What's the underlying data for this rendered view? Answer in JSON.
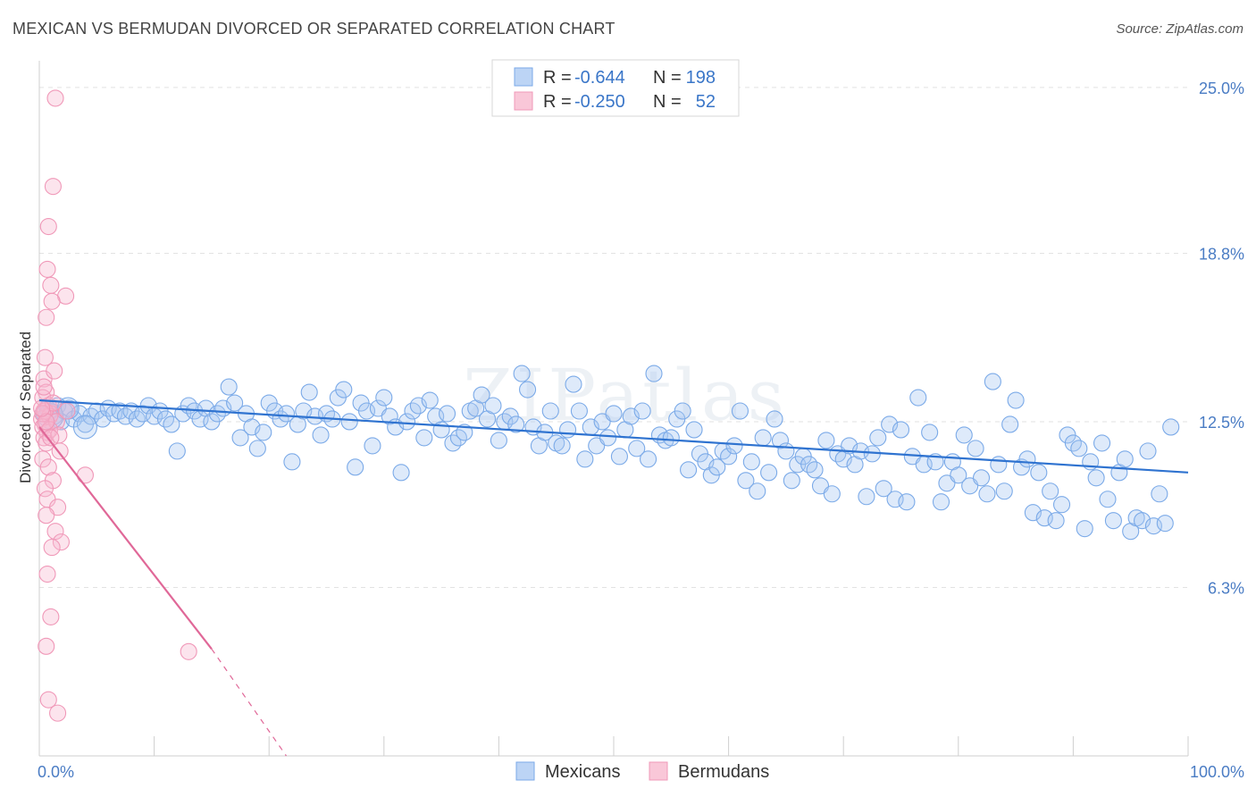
{
  "title": "MEXICAN VS BERMUDAN DIVORCED OR SEPARATED CORRELATION CHART",
  "source": "Source: ZipAtlas.com",
  "watermark": "ZIPatlas",
  "chart_data": {
    "type": "scatter",
    "title": "MEXICAN VS BERMUDAN DIVORCED OR SEPARATED CORRELATION CHART",
    "ylabel": "Divorced or Separated",
    "xlabel": "",
    "xlim": [
      0,
      100
    ],
    "ylim": [
      0,
      26.0
    ],
    "x_tick_labels": [
      {
        "value": 0,
        "label": "0.0%"
      },
      {
        "value": 100,
        "label": "100.0%"
      }
    ],
    "x_minor_ticks": [
      10,
      20,
      30,
      40,
      50,
      60,
      70,
      80,
      90,
      100
    ],
    "y_ticks": [
      {
        "value": 6.3,
        "label": "6.3%"
      },
      {
        "value": 12.5,
        "label": "12.5%"
      },
      {
        "value": 18.8,
        "label": "18.8%"
      },
      {
        "value": 25.0,
        "label": "25.0%"
      }
    ],
    "legend_stats": [
      {
        "r_label": "R =",
        "r_value": "-0.644",
        "n_label": "N =",
        "n_value": "198",
        "color": "#7baae8"
      },
      {
        "r_label": "R =",
        "r_value": "-0.250",
        "n_label": "N =",
        "n_value": "52",
        "color": "#f098b8"
      }
    ],
    "series": [
      {
        "name": "Mexicans",
        "color": "#7baae8",
        "line_color": "#2f73d0",
        "trend": {
          "x0": 0,
          "y0": 13.3,
          "x1": 100,
          "y1": 10.6,
          "dashed_to": null
        },
        "points": [
          [
            0.4,
            12.8
          ],
          [
            0.7,
            13.0
          ],
          [
            1.0,
            12.9
          ],
          [
            1.3,
            12.7
          ],
          [
            1.6,
            13.1
          ],
          [
            1.9,
            12.5
          ],
          [
            2.2,
            12.9
          ],
          [
            2.6,
            13.0
          ],
          [
            3.0,
            12.6
          ],
          [
            3.5,
            12.8
          ],
          [
            4.0,
            12.4
          ],
          [
            4.5,
            12.7
          ],
          [
            5.0,
            12.9
          ],
          [
            5.5,
            12.6
          ],
          [
            6.0,
            13.0
          ],
          [
            6.5,
            12.8
          ],
          [
            7.0,
            12.9
          ],
          [
            7.5,
            12.7
          ],
          [
            8.0,
            12.9
          ],
          [
            8.5,
            12.6
          ],
          [
            9.0,
            12.8
          ],
          [
            9.5,
            13.1
          ],
          [
            10.0,
            12.7
          ],
          [
            10.5,
            12.9
          ],
          [
            11.0,
            12.6
          ],
          [
            11.5,
            12.4
          ],
          [
            12.0,
            11.4
          ],
          [
            12.5,
            12.8
          ],
          [
            13.0,
            13.1
          ],
          [
            13.5,
            12.9
          ],
          [
            14.0,
            12.6
          ],
          [
            14.5,
            13.0
          ],
          [
            15.0,
            12.5
          ],
          [
            15.5,
            12.8
          ],
          [
            16.0,
            13.0
          ],
          [
            16.5,
            13.8
          ],
          [
            17.0,
            13.2
          ],
          [
            17.5,
            11.9
          ],
          [
            18.0,
            12.8
          ],
          [
            18.5,
            12.3
          ],
          [
            19.0,
            11.5
          ],
          [
            19.5,
            12.1
          ],
          [
            20.0,
            13.2
          ],
          [
            20.5,
            12.9
          ],
          [
            21.0,
            12.6
          ],
          [
            21.5,
            12.8
          ],
          [
            22.0,
            11.0
          ],
          [
            22.5,
            12.4
          ],
          [
            23.0,
            12.9
          ],
          [
            23.5,
            13.6
          ],
          [
            24.0,
            12.7
          ],
          [
            24.5,
            12.0
          ],
          [
            25.0,
            12.8
          ],
          [
            25.5,
            12.6
          ],
          [
            26.0,
            13.4
          ],
          [
            26.5,
            13.7
          ],
          [
            27.0,
            12.5
          ],
          [
            27.5,
            10.8
          ],
          [
            28.0,
            13.2
          ],
          [
            28.5,
            12.9
          ],
          [
            29.0,
            11.6
          ],
          [
            29.5,
            13.0
          ],
          [
            30.0,
            13.4
          ],
          [
            30.5,
            12.7
          ],
          [
            31.0,
            12.3
          ],
          [
            31.5,
            10.6
          ],
          [
            32.0,
            12.5
          ],
          [
            32.5,
            12.9
          ],
          [
            33.0,
            13.1
          ],
          [
            33.5,
            11.9
          ],
          [
            34.0,
            13.3
          ],
          [
            34.5,
            12.7
          ],
          [
            35.0,
            12.2
          ],
          [
            35.5,
            12.8
          ],
          [
            36.0,
            11.7
          ],
          [
            36.5,
            11.9
          ],
          [
            37.0,
            12.1
          ],
          [
            37.5,
            12.9
          ],
          [
            38.0,
            13.0
          ],
          [
            38.5,
            13.5
          ],
          [
            39.0,
            12.6
          ],
          [
            39.5,
            13.1
          ],
          [
            40.0,
            11.8
          ],
          [
            40.5,
            12.5
          ],
          [
            41.0,
            12.7
          ],
          [
            41.5,
            12.4
          ],
          [
            42.0,
            14.3
          ],
          [
            42.5,
            13.7
          ],
          [
            43.0,
            12.3
          ],
          [
            43.5,
            11.6
          ],
          [
            44.0,
            12.1
          ],
          [
            44.5,
            12.9
          ],
          [
            45.0,
            11.7
          ],
          [
            45.5,
            11.6
          ],
          [
            46.0,
            12.2
          ],
          [
            46.5,
            13.9
          ],
          [
            47.0,
            12.9
          ],
          [
            47.5,
            11.1
          ],
          [
            48.0,
            12.3
          ],
          [
            48.5,
            11.6
          ],
          [
            49.0,
            12.5
          ],
          [
            49.5,
            11.9
          ],
          [
            50.0,
            12.8
          ],
          [
            50.5,
            11.2
          ],
          [
            51.0,
            12.2
          ],
          [
            51.5,
            12.7
          ],
          [
            52.0,
            11.5
          ],
          [
            52.5,
            12.9
          ],
          [
            53.0,
            11.1
          ],
          [
            53.5,
            14.3
          ],
          [
            54.0,
            12.0
          ],
          [
            54.5,
            11.8
          ],
          [
            55.0,
            11.9
          ],
          [
            55.5,
            12.6
          ],
          [
            56.0,
            12.9
          ],
          [
            56.5,
            10.7
          ],
          [
            57.0,
            12.2
          ],
          [
            57.5,
            11.3
          ],
          [
            58.0,
            11.0
          ],
          [
            58.5,
            10.5
          ],
          [
            59.0,
            10.8
          ],
          [
            59.5,
            11.4
          ],
          [
            60.0,
            11.2
          ],
          [
            60.5,
            11.6
          ],
          [
            61.0,
            12.9
          ],
          [
            61.5,
            10.3
          ],
          [
            62.0,
            11.0
          ],
          [
            62.5,
            9.9
          ],
          [
            63.0,
            11.9
          ],
          [
            63.5,
            10.6
          ],
          [
            64.0,
            12.6
          ],
          [
            64.5,
            11.8
          ],
          [
            65.0,
            11.4
          ],
          [
            65.5,
            10.3
          ],
          [
            66.0,
            10.9
          ],
          [
            66.5,
            11.2
          ],
          [
            67.0,
            10.9
          ],
          [
            67.5,
            10.7
          ],
          [
            68.0,
            10.1
          ],
          [
            68.5,
            11.8
          ],
          [
            69.0,
            9.8
          ],
          [
            69.5,
            11.3
          ],
          [
            70.0,
            11.1
          ],
          [
            70.5,
            11.6
          ],
          [
            71.0,
            10.9
          ],
          [
            71.5,
            11.4
          ],
          [
            72.0,
            9.7
          ],
          [
            72.5,
            11.3
          ],
          [
            73.0,
            11.9
          ],
          [
            73.5,
            10.0
          ],
          [
            74.0,
            12.4
          ],
          [
            74.5,
            9.6
          ],
          [
            75.0,
            12.2
          ],
          [
            75.5,
            9.5
          ],
          [
            76.0,
            11.2
          ],
          [
            76.5,
            13.4
          ],
          [
            77.0,
            10.9
          ],
          [
            77.5,
            12.1
          ],
          [
            78.0,
            11.0
          ],
          [
            78.5,
            9.5
          ],
          [
            79.0,
            10.2
          ],
          [
            79.5,
            11.0
          ],
          [
            80.0,
            10.5
          ],
          [
            80.5,
            12.0
          ],
          [
            81.0,
            10.1
          ],
          [
            81.5,
            11.5
          ],
          [
            82.0,
            10.4
          ],
          [
            82.5,
            9.8
          ],
          [
            83.0,
            14.0
          ],
          [
            83.5,
            10.9
          ],
          [
            84.0,
            9.9
          ],
          [
            84.5,
            12.4
          ],
          [
            85.0,
            13.3
          ],
          [
            85.5,
            10.8
          ],
          [
            86.0,
            11.1
          ],
          [
            86.5,
            9.1
          ],
          [
            87.0,
            10.6
          ],
          [
            87.5,
            8.9
          ],
          [
            88.0,
            9.9
          ],
          [
            88.5,
            8.8
          ],
          [
            89.0,
            9.4
          ],
          [
            89.5,
            12.0
          ],
          [
            90.0,
            11.7
          ],
          [
            90.5,
            11.5
          ],
          [
            91.0,
            8.5
          ],
          [
            91.5,
            11.0
          ],
          [
            92.0,
            10.4
          ],
          [
            92.5,
            11.7
          ],
          [
            93.0,
            9.6
          ],
          [
            93.5,
            8.8
          ],
          [
            94.0,
            10.6
          ],
          [
            94.5,
            11.1
          ],
          [
            95.0,
            8.4
          ],
          [
            95.5,
            8.9
          ],
          [
            96.0,
            8.8
          ],
          [
            96.5,
            11.4
          ],
          [
            97.0,
            8.6
          ],
          [
            97.5,
            9.8
          ],
          [
            98.0,
            8.7
          ],
          [
            98.5,
            12.3
          ]
        ]
      },
      {
        "name": "Bermudans",
        "color": "#f098b8",
        "line_color": "#e06898",
        "trend": {
          "x0": 0,
          "y0": 12.3,
          "x1": 15.0,
          "y1": 4.0,
          "dashed_to": [
            21.5,
            0.0
          ]
        },
        "points": [
          [
            1.4,
            24.6
          ],
          [
            1.2,
            21.3
          ],
          [
            0.8,
            19.8
          ],
          [
            0.7,
            18.2
          ],
          [
            1.0,
            17.6
          ],
          [
            2.3,
            17.2
          ],
          [
            1.1,
            17.0
          ],
          [
            0.6,
            16.4
          ],
          [
            0.5,
            14.9
          ],
          [
            0.4,
            14.1
          ],
          [
            1.3,
            14.4
          ],
          [
            0.6,
            13.6
          ],
          [
            0.3,
            13.4
          ],
          [
            0.8,
            13.1
          ],
          [
            0.4,
            12.9
          ],
          [
            1.0,
            12.8
          ],
          [
            0.2,
            12.6
          ],
          [
            0.5,
            12.4
          ],
          [
            0.9,
            12.7
          ],
          [
            0.3,
            12.3
          ],
          [
            0.7,
            12.1
          ],
          [
            1.5,
            12.5
          ],
          [
            0.4,
            11.9
          ],
          [
            0.6,
            11.7
          ],
          [
            1.8,
            11.4
          ],
          [
            0.3,
            11.1
          ],
          [
            0.8,
            10.8
          ],
          [
            4.0,
            10.5
          ],
          [
            1.2,
            10.3
          ],
          [
            0.5,
            10.0
          ],
          [
            0.7,
            9.6
          ],
          [
            1.6,
            9.3
          ],
          [
            0.6,
            9.0
          ],
          [
            1.4,
            8.4
          ],
          [
            1.9,
            8.0
          ],
          [
            1.1,
            7.8
          ],
          [
            0.7,
            6.8
          ],
          [
            1.0,
            5.2
          ],
          [
            0.6,
            4.1
          ],
          [
            13.0,
            3.9
          ],
          [
            0.8,
            2.1
          ],
          [
            1.6,
            1.6
          ],
          [
            0.5,
            12.9
          ],
          [
            1.2,
            13.2
          ],
          [
            0.9,
            12.2
          ],
          [
            0.4,
            13.8
          ],
          [
            1.7,
            12.0
          ],
          [
            0.3,
            12.8
          ],
          [
            2.4,
            12.9
          ],
          [
            0.6,
            12.5
          ],
          [
            1.0,
            11.9
          ],
          [
            0.2,
            13.0
          ]
        ]
      }
    ]
  }
}
